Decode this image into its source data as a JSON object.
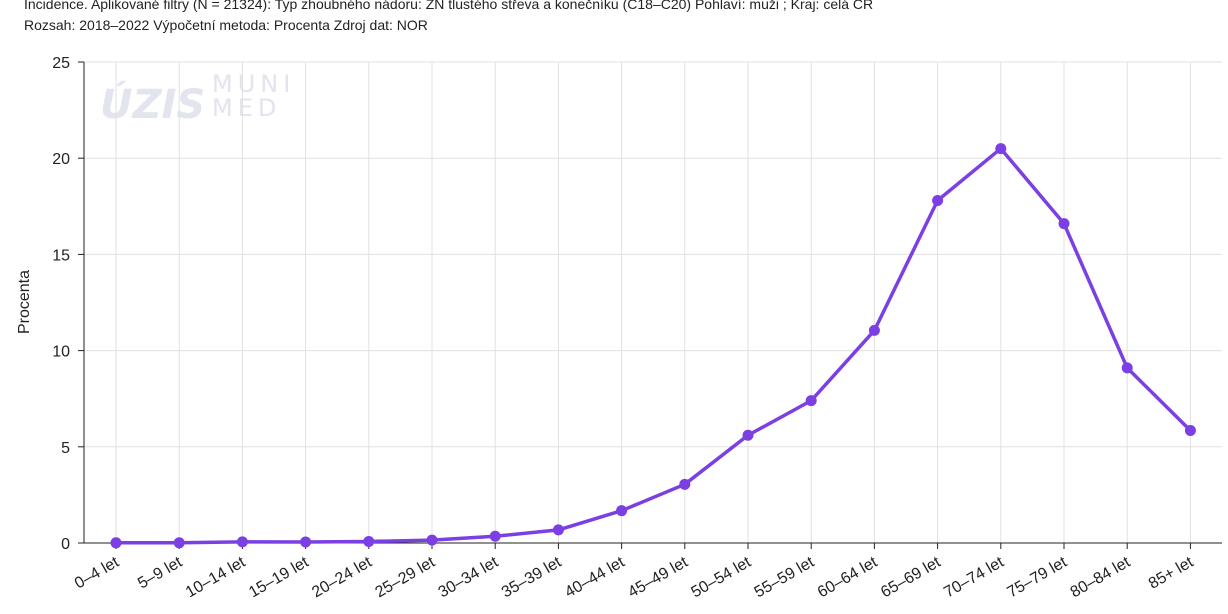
{
  "header": {
    "line1": "Incidence. Aplikované filtry (N = 21324): Typ zhoubného nádoru: ZN tlustého střeva a konečníku (C18–C20) Pohlaví: muži ; Kraj: celá ČR",
    "line2": "Rozsah: 2018–2022 Výpočetní metoda: Procenta Zdroj dat: NOR"
  },
  "watermark": {
    "left": "ÚZIS",
    "right_top": "MUNI",
    "right_bottom": "MED"
  },
  "chart_data": {
    "type": "line",
    "title": "",
    "xlabel": "",
    "ylabel": "Procenta",
    "ylim": [
      0,
      25
    ],
    "yticks": [
      0,
      5,
      10,
      15,
      20,
      25
    ],
    "grid": true,
    "categories": [
      "0–4 let",
      "5–9 let",
      "10–14 let",
      "15–19 let",
      "20–24 let",
      "25–29 let",
      "30–34 let",
      "35–39 let",
      "40–44 let",
      "45–49 let",
      "50–54 let",
      "55–59 let",
      "60–64 let",
      "65–69 let",
      "70–74 let",
      "75–79 let",
      "80–84 let",
      "85+ let"
    ],
    "series": [
      {
        "values": [
          0.01,
          0.01,
          0.06,
          0.05,
          0.08,
          0.15,
          0.35,
          0.68,
          1.68,
          3.05,
          5.6,
          7.4,
          11.05,
          17.8,
          20.5,
          16.6,
          9.1,
          5.85
        ]
      }
    ],
    "colors": {
      "line": "#7b3fe4",
      "grid": "#e0e0e0",
      "axis": "#222222"
    }
  }
}
